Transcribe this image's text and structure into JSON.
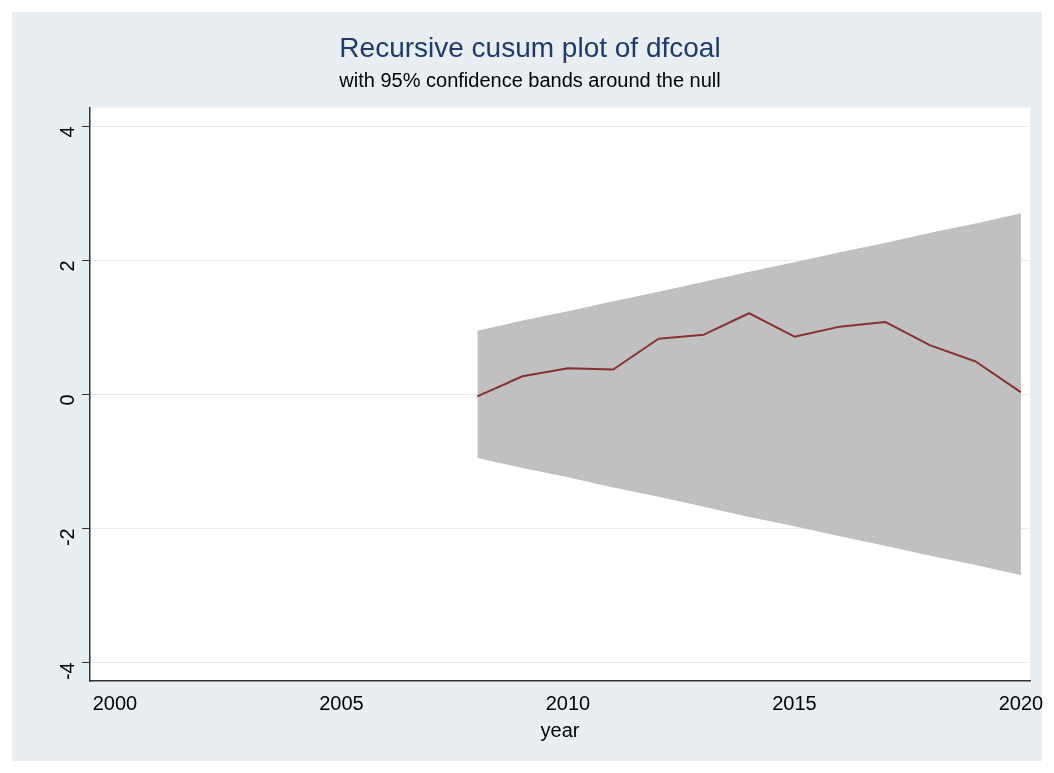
{
  "chart_data": {
    "type": "line",
    "title": "Recursive cusum plot of dfcoal",
    "subtitle": "with 95% confidence bands around the null",
    "xlabel": "year",
    "x": [
      2008,
      2009,
      2010,
      2011,
      2012,
      2013,
      2014,
      2015,
      2016,
      2017,
      2018,
      2019,
      2020
    ],
    "series": [
      {
        "color": "#8b2f2f",
        "values": [
          -0.03,
          0.27,
          0.39,
          0.37,
          0.83,
          0.89,
          1.21,
          0.86,
          1.01,
          1.08,
          0.73,
          0.49,
          0.03
        ],
        "lower": [
          -0.95,
          -1.1,
          -1.24,
          -1.39,
          -1.53,
          -1.68,
          -1.83,
          -1.97,
          -2.12,
          -2.26,
          -2.41,
          -2.55,
          -2.7
        ],
        "upper": [
          0.95,
          1.1,
          1.24,
          1.39,
          1.53,
          1.68,
          1.83,
          1.97,
          2.12,
          2.26,
          2.41,
          2.55,
          2.7
        ]
      }
    ],
    "xlim": [
      1999.45,
      2020.2
    ],
    "xticks": [
      2000,
      2005,
      2010,
      2015,
      2020
    ],
    "ylim": [
      -4.28,
      4.28
    ],
    "yticks": [
      -4,
      -2,
      0,
      2,
      4
    ],
    "grid": "y",
    "legend": false,
    "marker": "none",
    "line_style": "solid"
  }
}
